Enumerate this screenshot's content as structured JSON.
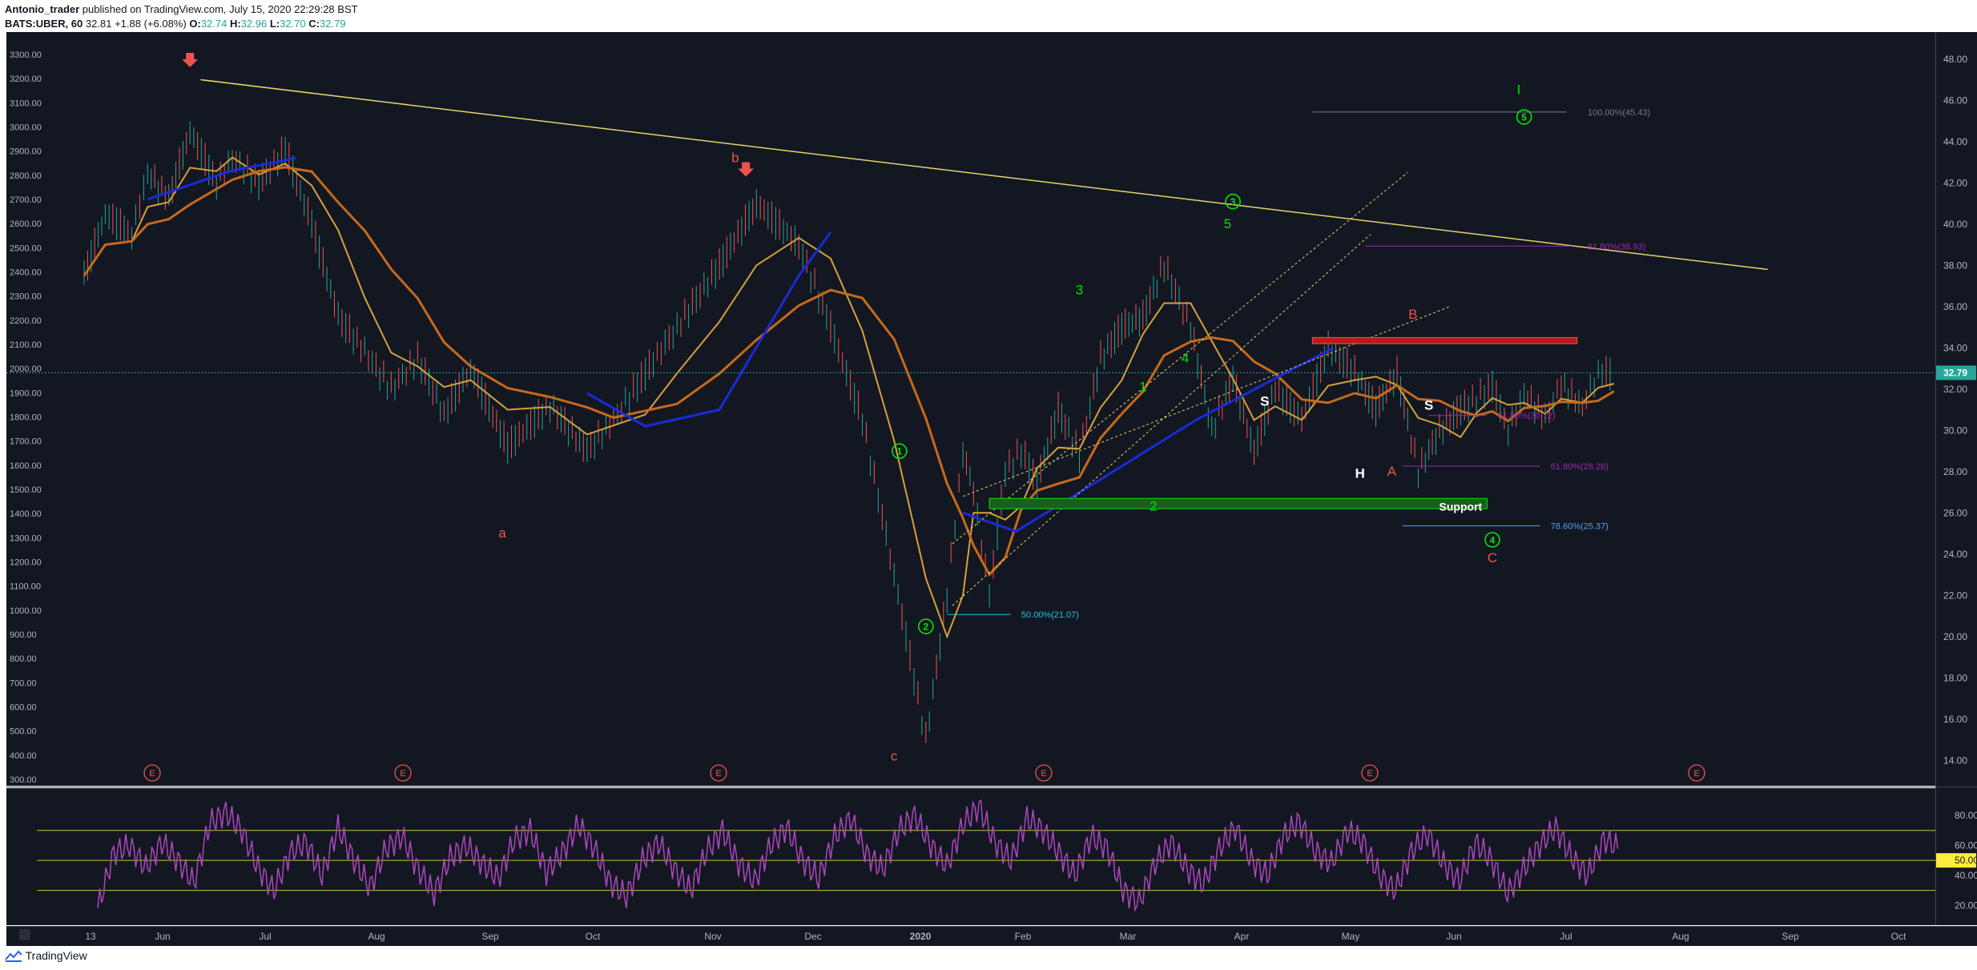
{
  "header": {
    "author": "Antonio_trader",
    "published": "published on TradingView.com, July 15, 2020 22:29:28 BST",
    "symbol": "BATS:UBER, 60",
    "last": "32.81",
    "change": "+1.88 (+6.08%)",
    "o_label": "O:",
    "o": "32.74",
    "h_label": "H:",
    "h": "32.96",
    "l_label": "L:",
    "l": "32.70",
    "c_label": "C:",
    "c": "32.79"
  },
  "footer": {
    "brand": "TradingView"
  },
  "chart_data": {
    "type": "line",
    "title": "BATS:UBER, 60",
    "x_ticks": [
      "13",
      "Jun",
      "Jul",
      "Aug",
      "Sep",
      "Oct",
      "Nov",
      "Dec",
      "2020",
      "Feb",
      "Mar",
      "Apr",
      "May",
      "Jun",
      "Jul",
      "Aug",
      "Sep",
      "Oct"
    ],
    "y_left_ticks": [
      "3300.00",
      "3200.00",
      "3100.00",
      "3000.00",
      "2900.00",
      "2800.00",
      "2700.00",
      "2600.00",
      "2500.00",
      "2400.00",
      "2300.00",
      "2200.00",
      "2100.00",
      "2000.00",
      "1900.00",
      "1800.00",
      "1700.00",
      "1600.00",
      "1500.00",
      "1400.00",
      "1300.00",
      "1200.00",
      "1100.00",
      "1000.00",
      "900.00",
      "800.00",
      "700.00",
      "600.00",
      "500.00",
      "400.00",
      "300.00"
    ],
    "y_right_ticks": [
      "48.00",
      "46.00",
      "44.00",
      "42.00",
      "40.00",
      "38.00",
      "36.00",
      "34.00",
      "32.00",
      "30.00",
      "28.00",
      "26.00",
      "24.00",
      "22.00",
      "20.00",
      "18.00",
      "16.00",
      "14.00"
    ],
    "ylim": [
      13,
      49
    ],
    "last_price_label": "32.79",
    "price_series": {
      "name": "UBER",
      "x": [
        0,
        4,
        9,
        12,
        16,
        20,
        25,
        28,
        33,
        38,
        43,
        48,
        53,
        58,
        63,
        68,
        73,
        80,
        88,
        95,
        100,
        106,
        112,
        120,
        127,
        135,
        141,
        147,
        153,
        159,
        163,
        166,
        168,
        171,
        174,
        177,
        180,
        184,
        188,
        192,
        196,
        200,
        204,
        209,
        213,
        217,
        221,
        225,
        230,
        235,
        240,
        244,
        248,
        252,
        256,
        260,
        263,
        266,
        269,
        272,
        276,
        279,
        283,
        286,
        289
      ],
      "values": [
        37.5,
        40.5,
        39.5,
        42.5,
        41.2,
        44.5,
        42.0,
        43.2,
        42.0,
        43.6,
        40.0,
        35.5,
        33.8,
        32.0,
        33.5,
        30.8,
        33.0,
        29.2,
        31.2,
        29.0,
        30.5,
        32.8,
        35.0,
        38.0,
        41.0,
        39.0,
        35.0,
        30.5,
        23.0,
        15.0,
        22.0,
        29.0,
        27.0,
        22.0,
        28.0,
        29.0,
        27.5,
        31.0,
        28.8,
        33.5,
        35.0,
        35.5,
        38.0,
        35.0,
        30.0,
        32.5,
        29.0,
        32.0,
        30.5,
        34.0,
        32.8,
        31.0,
        32.8,
        28.0,
        30.0,
        31.0,
        31.5,
        32.2,
        30.0,
        31.8,
        30.6,
        32.2,
        31.2,
        32.8,
        32.79
      ]
    },
    "moving_averages": [
      {
        "color": "#d4a13a",
        "kind": "fast"
      },
      {
        "color": "#c66a1a",
        "kind": "slow"
      },
      {
        "color": "#1a2bd8",
        "kind": "trend"
      }
    ],
    "annotations": [
      {
        "text": "b",
        "color": "#ef5350"
      },
      {
        "text": "a",
        "color": "#ef5350"
      },
      {
        "text": "c",
        "color": "#ef5350"
      },
      {
        "text": "1",
        "color": "#00e600"
      },
      {
        "text": "2",
        "color": "#00e600"
      },
      {
        "text": "3",
        "color": "#00e600"
      },
      {
        "text": "4",
        "color": "#00e600"
      },
      {
        "text": "5",
        "color": "#00e600"
      },
      {
        "text": "1",
        "color": "#00e600"
      },
      {
        "text": "2",
        "color": "#00e600"
      },
      {
        "text": "3",
        "color": "#00e600"
      },
      {
        "text": "4",
        "color": "#00e600"
      },
      {
        "text": "5",
        "color": "#00e600"
      },
      {
        "text": "I",
        "color": "#00e600"
      },
      {
        "text": "S",
        "color": "#ffffff"
      },
      {
        "text": "H",
        "color": "#ffffff"
      },
      {
        "text": "S",
        "color": "#ffffff"
      },
      {
        "text": "A",
        "color": "#ef5350"
      },
      {
        "text": "B",
        "color": "#ef5350"
      },
      {
        "text": "C",
        "color": "#ef5350"
      },
      {
        "text": "Support",
        "color": "#ffffff"
      }
    ],
    "fib_levels": [
      {
        "text": "100.00%(45.43)",
        "value": 45.43,
        "color": "#787b86"
      },
      {
        "text": "61.80%(38.93)",
        "value": 38.93,
        "color": "#9c27b0"
      },
      {
        "text": "61.80%(30.72)",
        "value": 30.72,
        "color": "#9c27b0"
      },
      {
        "text": "61.80%(28.26)",
        "value": 28.26,
        "color": "#9c27b0"
      },
      {
        "text": "78.60%(25.37)",
        "value": 25.37,
        "color": "#5b9cf6"
      },
      {
        "text": "50.00%(21.07)",
        "value": 21.07,
        "color": "#22c5e0"
      }
    ],
    "resistance_zone": [
      34.2,
      34.5
    ],
    "support_zone": [
      26.2,
      26.7
    ],
    "earnings_markers": [
      "E",
      "E",
      "E",
      "E",
      "E",
      "E"
    ],
    "rsi": {
      "name": "RSI",
      "ylim": [
        10,
        95
      ],
      "y_ticks": [
        "80.00",
        "60.00",
        "40.00",
        "20.00"
      ],
      "bands": [
        70,
        50,
        30
      ],
      "current_label": "50.00",
      "values": [
        18,
        55,
        60,
        45,
        62,
        50,
        35,
        75,
        82,
        70,
        45,
        30,
        55,
        62,
        40,
        72,
        50,
        32,
        58,
        66,
        44,
        28,
        52,
        60,
        48,
        38,
        64,
        70,
        42,
        55,
        74,
        58,
        35,
        26,
        50,
        62,
        44,
        30,
        56,
        70,
        48,
        36,
        60,
        72,
        50,
        38,
        66,
        78,
        54,
        44,
        70,
        80,
        60,
        46,
        74,
        86,
        62,
        50,
        78,
        70,
        55,
        40,
        66,
        58,
        30,
        22,
        48,
        62,
        44,
        34,
        58,
        72,
        50,
        40,
        66,
        76,
        56,
        48,
        70,
        62,
        40,
        30,
        56,
        68,
        48,
        36,
        62,
        50,
        28,
        44,
        60,
        72,
        52,
        40,
        64,
        58
      ]
    }
  }
}
